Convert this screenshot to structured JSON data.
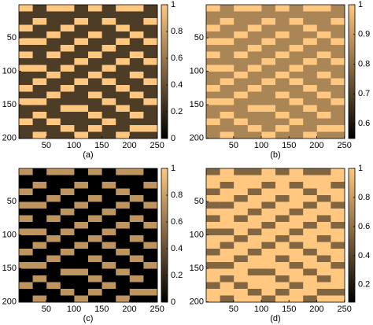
{
  "chart_data": [
    {
      "type": "heatmap",
      "caption": "(a)",
      "xlim": [
        0.5,
        250.5
      ],
      "ylim": [
        0.5,
        200.5
      ],
      "xticks": [
        50,
        100,
        150,
        200,
        250
      ],
      "yticks": [
        50,
        100,
        150,
        200
      ],
      "clim": [
        0,
        1
      ],
      "cticks": [
        0,
        0.2,
        0.4,
        0.6,
        0.8,
        1
      ],
      "colormap": [
        "#000000",
        "#ffc77f"
      ],
      "z": [
        [
          1,
          0.3,
          1,
          1,
          0.3,
          1,
          0.3,
          1,
          1,
          0.3
        ],
        [
          0.3,
          0.3,
          0.3,
          0.3,
          0.3,
          0.3,
          0.3,
          0.3,
          0.3,
          0.3
        ],
        [
          0.3,
          1,
          0.3,
          0.3,
          1,
          0.3,
          1,
          0.3,
          0.3,
          1
        ],
        [
          1,
          0.3,
          0.3,
          1,
          0.3,
          0.3,
          0.3,
          1,
          0.3,
          0.3
        ],
        [
          0.3,
          0.3,
          1,
          0.3,
          0.3,
          1,
          0.3,
          0.3,
          1,
          0.3
        ],
        [
          1,
          1,
          0.3,
          0.3,
          1,
          0.3,
          0.3,
          1,
          0.3,
          1
        ],
        [
          0.3,
          0.3,
          0.3,
          1,
          0.3,
          0.3,
          1,
          0.3,
          0.3,
          0.3
        ],
        [
          1,
          0.3,
          1,
          0.3,
          0.3,
          1,
          0.3,
          0.3,
          1,
          0.3
        ],
        [
          0.3,
          0.3,
          0.3,
          0.3,
          1,
          0.3,
          0.3,
          1,
          0.3,
          1
        ],
        [
          1,
          1,
          0.3,
          1,
          0.3,
          0.3,
          1,
          0.3,
          0.3,
          0.3
        ],
        [
          0.3,
          0.3,
          1,
          0.3,
          0.3,
          1,
          0.3,
          0.3,
          1,
          0.3
        ],
        [
          0.3,
          1,
          0.3,
          0.3,
          1,
          0.3,
          1,
          0.3,
          0.3,
          1
        ],
        [
          1,
          0.3,
          0.3,
          1,
          0.3,
          0.3,
          0.3,
          1,
          0.3,
          0.3
        ],
        [
          0.3,
          0.3,
          1,
          0.3,
          0.3,
          1,
          0.3,
          0.3,
          1,
          0.3
        ],
        [
          1,
          1,
          0.3,
          0.3,
          0.3,
          0.3,
          1,
          0.3,
          0.3,
          1
        ],
        [
          0.3,
          0.3,
          0.3,
          1,
          1,
          0.3,
          0.3,
          1,
          0.3,
          0.3
        ],
        [
          0.3,
          1,
          0.3,
          0.3,
          0.3,
          1,
          0.3,
          0.3,
          1,
          0.3
        ],
        [
          1,
          0.3,
          1,
          0.3,
          0.3,
          0.3,
          1,
          0.3,
          0.3,
          0.3
        ],
        [
          0.3,
          0.3,
          0.3,
          1,
          0.3,
          1,
          0.3,
          0.3,
          1,
          1
        ],
        [
          0.3,
          1,
          0.3,
          0.3,
          1,
          0.3,
          0.3,
          1,
          0.3,
          0.3
        ]
      ]
    },
    {
      "type": "heatmap",
      "caption": "(b)",
      "xlim": [
        0.5,
        250.5
      ],
      "ylim": [
        0.5,
        200.5
      ],
      "xticks": [
        50,
        100,
        150,
        200,
        250
      ],
      "yticks": [
        50,
        100,
        150,
        200
      ],
      "clim": [
        0.55,
        1
      ],
      "cticks": [
        0.6,
        0.7,
        0.8,
        0.9,
        1
      ],
      "colormap": [
        "#000000",
        "#ffc77f"
      ],
      "z": [
        [
          1,
          0.85,
          1,
          1,
          0.85,
          1,
          0.85,
          1,
          1,
          0.85
        ],
        [
          0.85,
          0.85,
          0.85,
          0.85,
          0.85,
          0.85,
          0.85,
          0.85,
          0.85,
          0.85
        ],
        [
          0.85,
          1,
          0.85,
          0.85,
          1,
          0.85,
          1,
          0.85,
          0.85,
          1
        ],
        [
          1,
          0.85,
          0.85,
          1,
          0.85,
          0.85,
          0.85,
          1,
          0.85,
          0.85
        ],
        [
          0.85,
          0.85,
          1,
          0.85,
          0.85,
          1,
          0.85,
          0.85,
          1,
          0.85
        ],
        [
          1,
          1,
          0.85,
          0.85,
          1,
          0.85,
          0.85,
          1,
          0.85,
          1
        ],
        [
          0.85,
          0.85,
          0.85,
          1,
          0.85,
          0.85,
          1,
          0.85,
          0.85,
          0.85
        ],
        [
          1,
          0.85,
          1,
          0.85,
          0.85,
          1,
          0.85,
          0.85,
          1,
          0.85
        ],
        [
          0.85,
          0.85,
          0.85,
          0.85,
          1,
          0.85,
          0.85,
          1,
          0.85,
          1
        ],
        [
          1,
          1,
          0.85,
          1,
          0.85,
          0.85,
          1,
          0.85,
          0.85,
          0.85
        ],
        [
          0.85,
          0.85,
          1,
          0.85,
          0.85,
          1,
          0.85,
          0.85,
          1,
          0.85
        ],
        [
          0.85,
          1,
          0.85,
          0.85,
          1,
          0.85,
          1,
          0.85,
          0.85,
          1
        ],
        [
          1,
          0.85,
          0.85,
          1,
          0.85,
          0.85,
          0.85,
          1,
          0.85,
          0.85
        ],
        [
          0.85,
          0.85,
          1,
          0.85,
          0.85,
          1,
          0.85,
          0.85,
          1,
          0.85
        ],
        [
          1,
          1,
          0.85,
          0.85,
          0.85,
          0.85,
          1,
          0.85,
          0.85,
          1
        ],
        [
          0.85,
          0.85,
          0.85,
          1,
          1,
          0.85,
          0.85,
          1,
          0.85,
          0.85
        ],
        [
          0.85,
          1,
          0.85,
          0.85,
          0.85,
          1,
          0.85,
          0.85,
          1,
          0.85
        ],
        [
          1,
          0.85,
          1,
          0.85,
          0.85,
          0.85,
          1,
          0.85,
          0.85,
          0.85
        ],
        [
          0.85,
          0.85,
          0.85,
          1,
          0.85,
          1,
          0.85,
          0.85,
          1,
          1
        ],
        [
          0.85,
          1,
          0.85,
          0.85,
          1,
          0.85,
          0.85,
          1,
          0.85,
          0.85
        ]
      ]
    },
    {
      "type": "heatmap",
      "caption": "(c)",
      "xlim": [
        0.5,
        250.5
      ],
      "ylim": [
        0.5,
        200.5
      ],
      "xticks": [
        50,
        100,
        150,
        200,
        250
      ],
      "yticks": [
        50,
        100,
        150,
        200
      ],
      "clim": [
        0,
        1
      ],
      "cticks": [
        0,
        0.2,
        0.4,
        0.6,
        0.8,
        1
      ],
      "colormap": [
        "#000000",
        "#ffc77f"
      ],
      "z": [
        [
          0.75,
          0,
          0.75,
          0.75,
          0,
          0.75,
          0,
          0.75,
          0.75,
          0
        ],
        [
          0,
          0,
          0,
          0,
          0,
          0,
          0,
          0,
          0,
          0
        ],
        [
          0,
          0.75,
          0,
          0,
          0.75,
          0,
          0.75,
          0,
          0,
          0.75
        ],
        [
          0.75,
          0,
          0,
          0.75,
          0,
          0,
          0,
          0.75,
          0,
          0
        ],
        [
          0,
          0,
          0.75,
          0,
          0,
          0.75,
          0,
          0,
          0.75,
          0
        ],
        [
          0.75,
          0.75,
          0,
          0,
          0.75,
          0,
          0,
          0.75,
          0,
          0.75
        ],
        [
          0,
          0,
          0,
          0.75,
          0,
          0,
          0.75,
          0,
          0,
          0
        ],
        [
          0.75,
          0,
          0.75,
          0,
          0,
          0.75,
          0,
          0,
          0.75,
          0
        ],
        [
          0,
          0,
          0,
          0,
          0.75,
          0,
          0,
          0.75,
          0,
          0.75
        ],
        [
          0.75,
          0.75,
          0,
          0.75,
          0,
          0,
          0.75,
          0,
          0,
          0
        ],
        [
          0,
          0,
          0.75,
          0,
          0,
          0.75,
          0,
          0,
          0.75,
          0
        ],
        [
          0,
          0.75,
          0,
          0,
          0.75,
          0,
          0.75,
          0,
          0,
          0.75
        ],
        [
          0.75,
          0,
          0,
          0.75,
          0,
          0,
          0,
          0.75,
          0,
          0
        ],
        [
          0,
          0,
          0.75,
          0,
          0,
          0.75,
          0,
          0,
          0.75,
          0
        ],
        [
          0.75,
          0.75,
          0,
          0,
          0,
          0,
          0.75,
          0,
          0,
          0.75
        ],
        [
          0,
          0,
          0,
          0.75,
          0.75,
          0,
          0,
          0.75,
          0,
          0
        ],
        [
          0,
          0.75,
          0,
          0,
          0,
          0.75,
          0,
          0,
          0.75,
          0
        ],
        [
          0.75,
          0,
          0.75,
          0,
          0,
          0,
          0.75,
          0,
          0,
          0
        ],
        [
          0,
          0,
          0,
          0.75,
          0,
          0.75,
          0,
          0,
          0.75,
          0.75
        ],
        [
          0,
          0.75,
          0,
          0,
          0.75,
          0,
          0,
          0.75,
          0,
          0
        ]
      ]
    },
    {
      "type": "heatmap",
      "caption": "(d)",
      "xlim": [
        0.5,
        250.5
      ],
      "ylim": [
        0.5,
        200.5
      ],
      "xticks": [
        50,
        100,
        150,
        200,
        250
      ],
      "yticks": [
        50,
        100,
        150,
        200
      ],
      "clim": [
        0.08,
        1
      ],
      "cticks": [
        0.2,
        0.4,
        0.6,
        0.8,
        1
      ],
      "colormap": [
        "#000000",
        "#ffc77f"
      ],
      "z": [
        [
          0.55,
          1,
          0.55,
          0.55,
          1,
          0.55,
          1,
          0.55,
          0.55,
          1
        ],
        [
          1,
          1,
          1,
          1,
          1,
          1,
          1,
          1,
          1,
          1
        ],
        [
          1,
          0.55,
          1,
          1,
          0.55,
          1,
          0.55,
          1,
          1,
          0.55
        ],
        [
          0.55,
          1,
          1,
          0.55,
          1,
          1,
          1,
          0.55,
          1,
          1
        ],
        [
          1,
          1,
          0.55,
          1,
          1,
          0.55,
          1,
          1,
          0.55,
          1
        ],
        [
          0.55,
          0.55,
          1,
          1,
          0.55,
          1,
          1,
          0.55,
          1,
          0.55
        ],
        [
          1,
          1,
          1,
          0.55,
          1,
          1,
          0.55,
          1,
          1,
          1
        ],
        [
          0.55,
          1,
          0.55,
          1,
          1,
          0.55,
          1,
          1,
          0.55,
          1
        ],
        [
          1,
          1,
          1,
          1,
          0.55,
          1,
          1,
          0.55,
          1,
          0.55
        ],
        [
          0.55,
          0.55,
          1,
          0.55,
          1,
          1,
          0.55,
          1,
          1,
          1
        ],
        [
          1,
          1,
          0.55,
          1,
          1,
          0.55,
          1,
          1,
          0.55,
          1
        ],
        [
          1,
          0.55,
          1,
          1,
          0.55,
          1,
          0.55,
          1,
          1,
          0.55
        ],
        [
          0.55,
          1,
          1,
          0.55,
          1,
          1,
          1,
          0.55,
          1,
          1
        ],
        [
          1,
          1,
          0.55,
          1,
          1,
          0.55,
          1,
          1,
          0.55,
          1
        ],
        [
          0.55,
          0.55,
          1,
          1,
          1,
          1,
          0.55,
          1,
          1,
          0.55
        ],
        [
          1,
          1,
          1,
          0.55,
          0.55,
          1,
          1,
          0.55,
          1,
          1
        ],
        [
          1,
          0.55,
          1,
          1,
          1,
          0.55,
          1,
          1,
          0.55,
          1
        ],
        [
          0.55,
          1,
          0.55,
          1,
          1,
          1,
          0.55,
          1,
          1,
          1
        ],
        [
          1,
          1,
          1,
          0.55,
          1,
          0.55,
          1,
          1,
          0.55,
          0.55
        ],
        [
          1,
          0.55,
          1,
          1,
          0.55,
          1,
          1,
          0.55,
          1,
          1
        ]
      ]
    }
  ]
}
